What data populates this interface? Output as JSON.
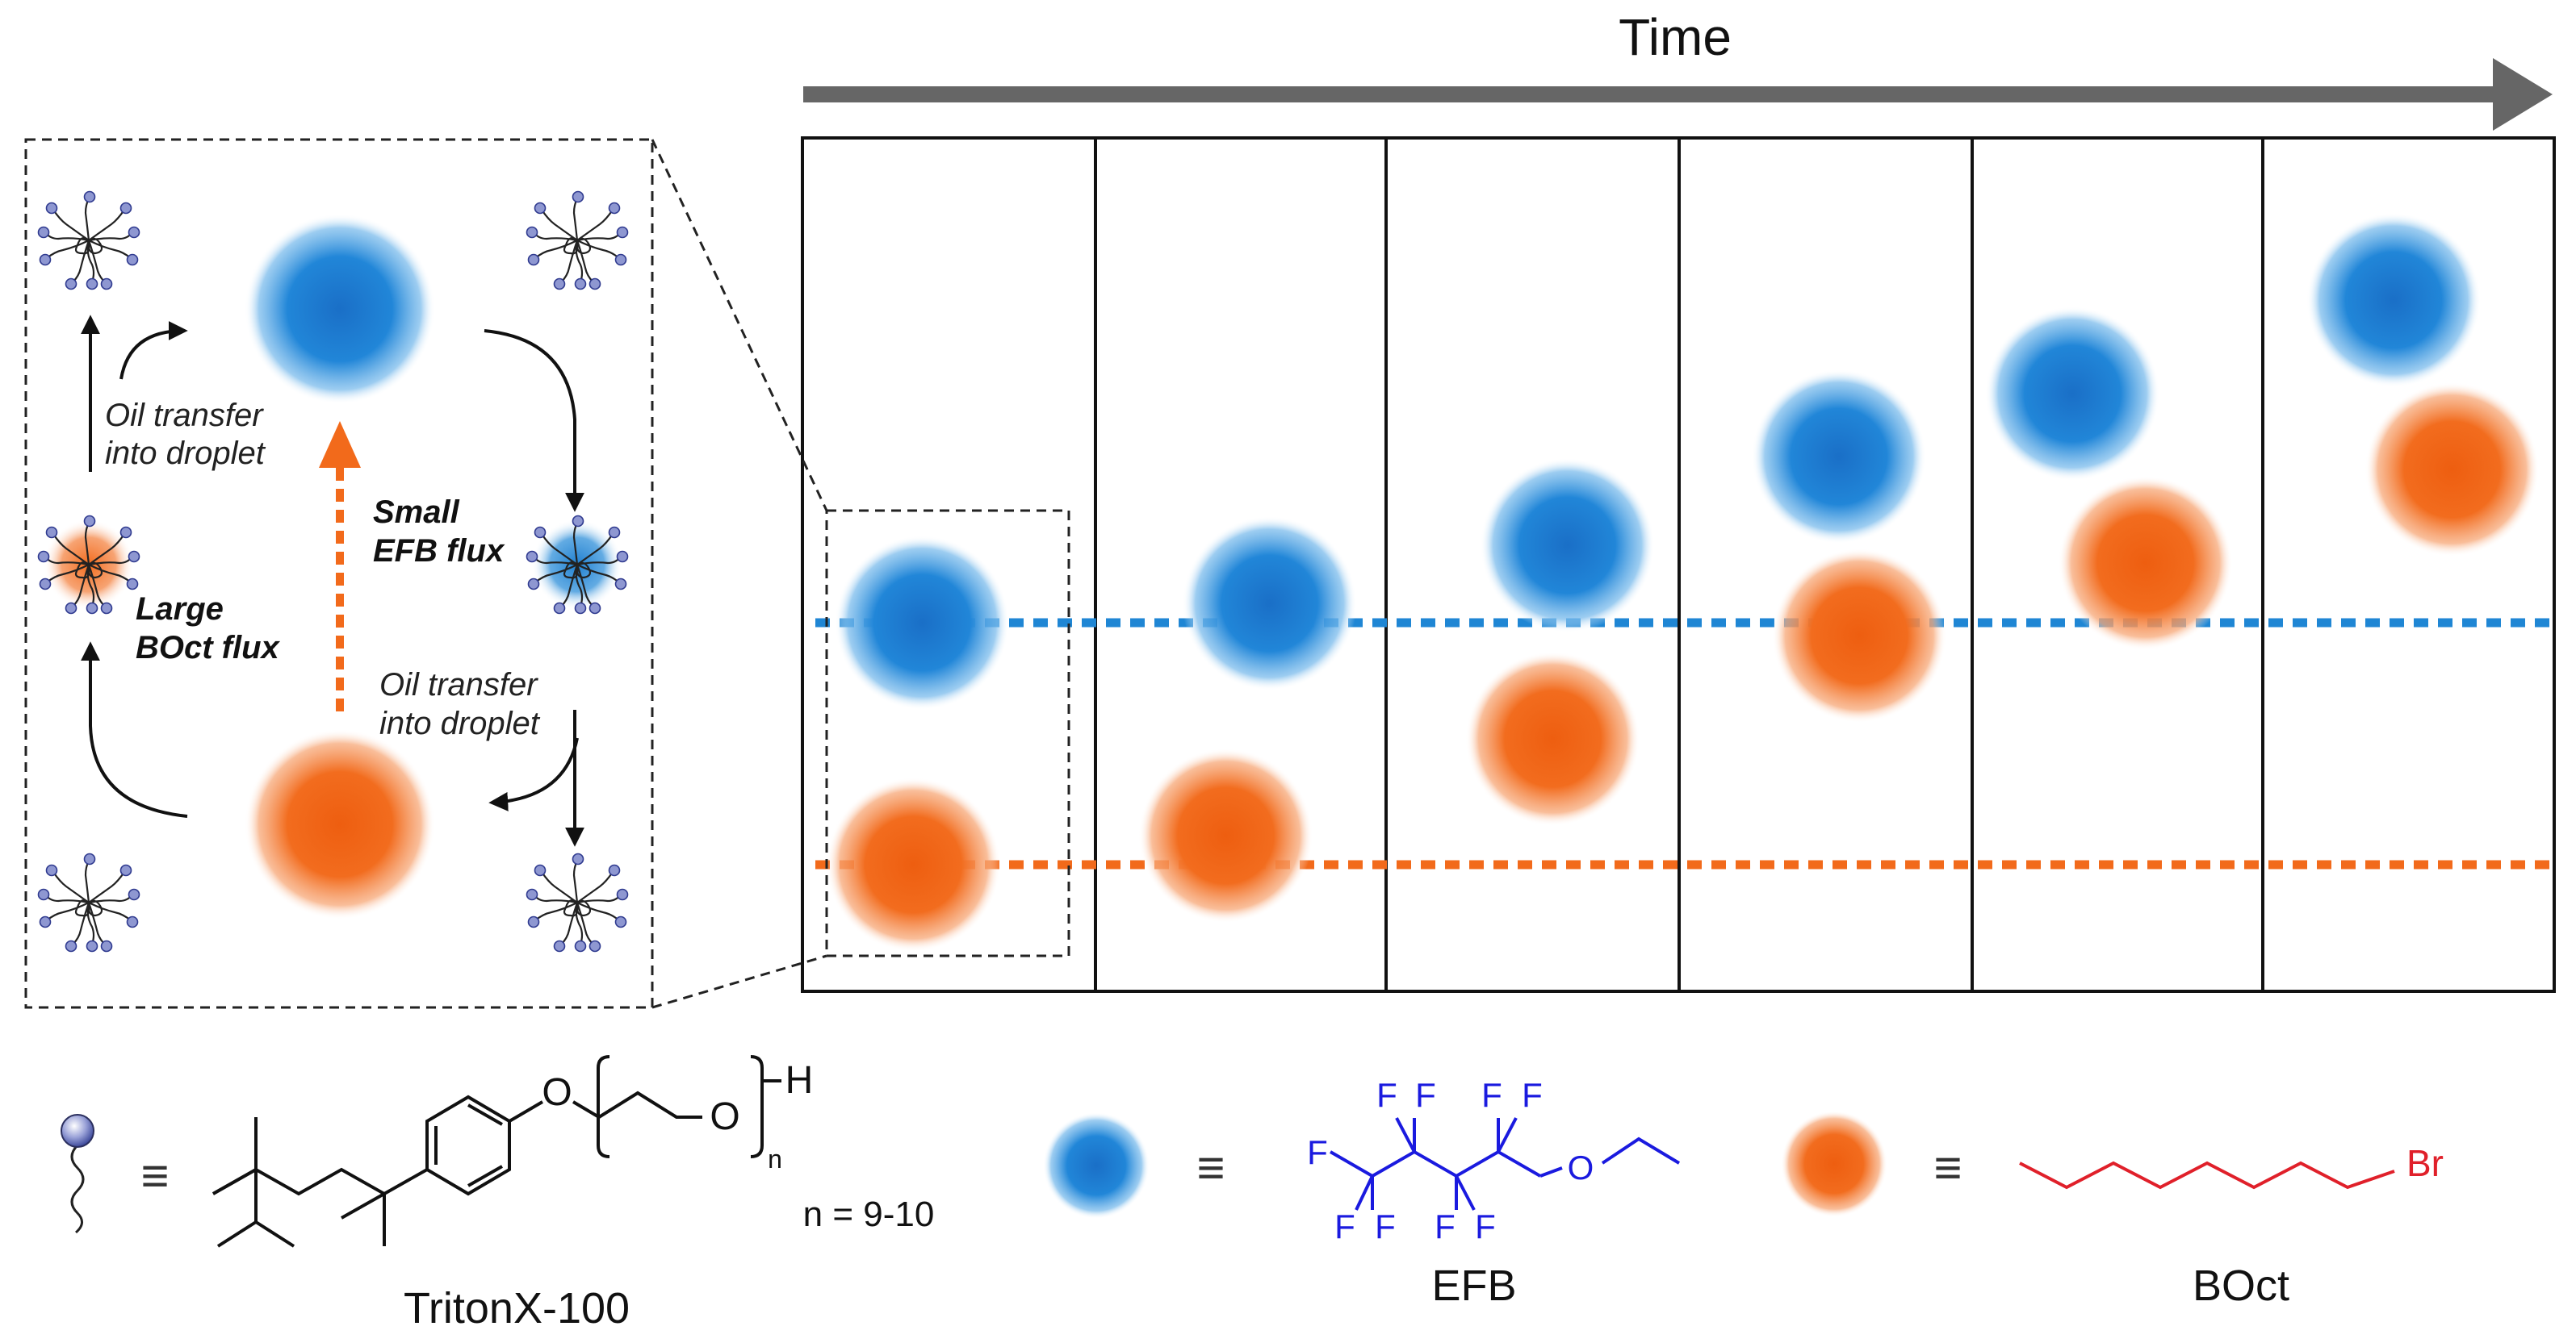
{
  "colors": {
    "efb_blue": "#1f7fcf",
    "boct_orange": "#f26a1b",
    "ink": "#111111",
    "axis_gray": "#666666",
    "surfactant_purple": "#7b86c4",
    "chem_blue": "#1a1adf",
    "chem_red": "#e0202a"
  },
  "header": {
    "time_label": "Time"
  },
  "inset": {
    "oil_transfer_top": [
      "Oil transfer",
      "into droplet"
    ],
    "oil_transfer_bottom": [
      "Oil transfer",
      "into droplet"
    ],
    "small_flux": [
      "Small",
      "EFB flux"
    ],
    "large_flux": [
      "Large",
      "BOct flux"
    ]
  },
  "timeline": {
    "panel_count": 6,
    "efb_rise_by_step": [
      0,
      0.12,
      0.48,
      1.03,
      1.42,
      2.0
    ],
    "boct_rise_by_step": [
      0,
      0.18,
      0.78,
      1.42,
      1.87,
      2.45
    ]
  },
  "legend": {
    "triton": {
      "name": "TritonX-100",
      "n_sub": "n",
      "n_range": "n = 9-10",
      "h": "H",
      "o": "O"
    },
    "efb": {
      "name": "EFB",
      "f": "F",
      "o": "O"
    },
    "boct": {
      "name": "BOct",
      "br": "Br"
    },
    "equiv": "≡"
  }
}
